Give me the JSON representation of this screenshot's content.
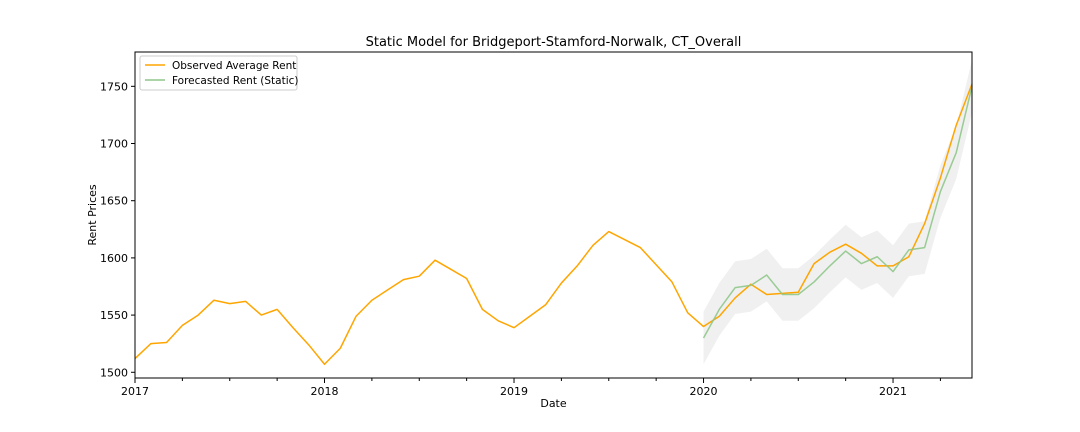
{
  "chart_data": {
    "type": "line",
    "title": "Static Model for Bridgeport-Stamford-Norwalk, CT_Overall",
    "xlabel": "Date",
    "ylabel": "Rent Prices",
    "xlim": [
      "2017-01",
      "2021-06"
    ],
    "ylim": [
      1495,
      1780
    ],
    "x_ticks": [
      {
        "label": "2017",
        "date": "2017-01"
      },
      {
        "label": "2018",
        "date": "2018-01"
      },
      {
        "label": "2019",
        "date": "2019-01"
      },
      {
        "label": "2020",
        "date": "2020-01"
      },
      {
        "label": "2021",
        "date": "2021-01"
      }
    ],
    "y_ticks": [
      1500,
      1550,
      1600,
      1650,
      1700,
      1750
    ],
    "legend_position": "top-left",
    "grid": false,
    "series": [
      {
        "name": "Observed Average Rent",
        "color": "#ffa500",
        "points": [
          [
            "2017-01",
            1512
          ],
          [
            "2017-02",
            1525
          ],
          [
            "2017-03",
            1526
          ],
          [
            "2017-04",
            1541
          ],
          [
            "2017-05",
            1550
          ],
          [
            "2017-06",
            1563
          ],
          [
            "2017-07",
            1560
          ],
          [
            "2017-08",
            1562
          ],
          [
            "2017-09",
            1550
          ],
          [
            "2017-10",
            1555
          ],
          [
            "2017-11",
            1539
          ],
          [
            "2017-12",
            1524
          ],
          [
            "2018-01",
            1507
          ],
          [
            "2018-02",
            1521
          ],
          [
            "2018-03",
            1549
          ],
          [
            "2018-04",
            1563
          ],
          [
            "2018-05",
            1572
          ],
          [
            "2018-06",
            1581
          ],
          [
            "2018-07",
            1584
          ],
          [
            "2018-08",
            1598
          ],
          [
            "2018-09",
            1590
          ],
          [
            "2018-10",
            1582
          ],
          [
            "2018-11",
            1555
          ],
          [
            "2018-12",
            1545
          ],
          [
            "2019-01",
            1539
          ],
          [
            "2019-02",
            1549
          ],
          [
            "2019-03",
            1559
          ],
          [
            "2019-04",
            1578
          ],
          [
            "2019-05",
            1593
          ],
          [
            "2019-06",
            1611
          ],
          [
            "2019-07",
            1623
          ],
          [
            "2019-08",
            1616
          ],
          [
            "2019-09",
            1609
          ],
          [
            "2019-10",
            1594
          ],
          [
            "2019-11",
            1579
          ],
          [
            "2019-12",
            1552
          ],
          [
            "2020-01",
            1540
          ],
          [
            "2020-02",
            1549
          ],
          [
            "2020-03",
            1565
          ],
          [
            "2020-04",
            1577
          ],
          [
            "2020-05",
            1568
          ],
          [
            "2020-06",
            1569
          ],
          [
            "2020-07",
            1570
          ],
          [
            "2020-08",
            1595
          ],
          [
            "2020-09",
            1605
          ],
          [
            "2020-10",
            1612
          ],
          [
            "2020-11",
            1604
          ],
          [
            "2020-12",
            1593
          ],
          [
            "2021-01",
            1593
          ],
          [
            "2021-02",
            1601
          ],
          [
            "2021-03",
            1630
          ],
          [
            "2021-04",
            1670
          ],
          [
            "2021-05",
            1716
          ],
          [
            "2021-06",
            1752
          ]
        ]
      },
      {
        "name": "Forecasted Rent (Static)",
        "color": "#8fc68a",
        "band_color": "#d9d9d9",
        "points": [
          [
            "2020-01",
            1530
          ],
          [
            "2020-02",
            1555
          ],
          [
            "2020-03",
            1574
          ],
          [
            "2020-04",
            1576
          ],
          [
            "2020-05",
            1585
          ],
          [
            "2020-06",
            1568
          ],
          [
            "2020-07",
            1568
          ],
          [
            "2020-08",
            1579
          ],
          [
            "2020-09",
            1593
          ],
          [
            "2020-10",
            1606
          ],
          [
            "2020-11",
            1595
          ],
          [
            "2020-12",
            1601
          ],
          [
            "2021-01",
            1588
          ],
          [
            "2021-02",
            1607
          ],
          [
            "2021-03",
            1609
          ],
          [
            "2021-04",
            1658
          ],
          [
            "2021-05",
            1692
          ],
          [
            "2021-06",
            1750
          ]
        ],
        "lower": [
          1507,
          1532,
          1551,
          1553,
          1562,
          1545,
          1545,
          1556,
          1570,
          1583,
          1572,
          1578,
          1565,
          1584,
          1586,
          1635,
          1669,
          1727
        ],
        "upper": [
          1553,
          1578,
          1597,
          1599,
          1608,
          1591,
          1591,
          1602,
          1616,
          1629,
          1618,
          1624,
          1611,
          1630,
          1632,
          1681,
          1715,
          1773
        ]
      }
    ]
  }
}
